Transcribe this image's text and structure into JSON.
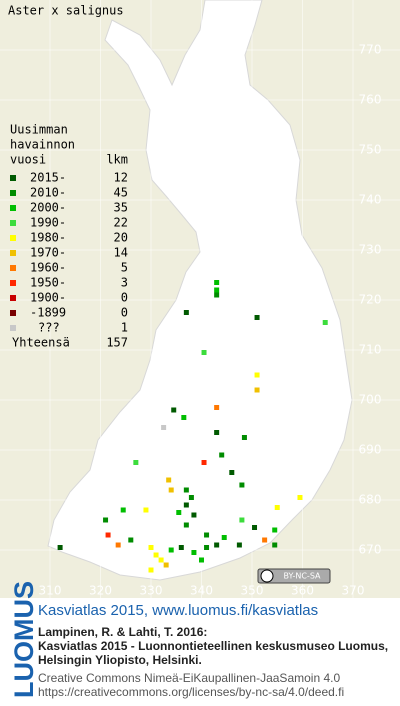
{
  "title": "Aster x salignus",
  "legend": {
    "heading": [
      "Uusimman",
      "havainnon"
    ],
    "col_period": "vuosi",
    "col_count": "lkm",
    "rows": [
      {
        "label": "2015-",
        "count": 12,
        "color": "#005a00"
      },
      {
        "label": "2010-",
        "count": 45,
        "color": "#008c00"
      },
      {
        "label": "2000-",
        "count": 35,
        "color": "#00be00"
      },
      {
        "label": "1990-",
        "count": 22,
        "color": "#3cdc3c"
      },
      {
        "label": "1980-",
        "count": 20,
        "color": "#ffff00"
      },
      {
        "label": "1970-",
        "count": 14,
        "color": "#f0c000"
      },
      {
        "label": "1960-",
        "count": 5,
        "color": "#ff7800"
      },
      {
        "label": "1950-",
        "count": 3,
        "color": "#ff2800"
      },
      {
        "label": "1900-",
        "count": 0,
        "color": "#c80000"
      },
      {
        "label": "-1899",
        "count": 0,
        "color": "#780000"
      },
      {
        "label": "???",
        "count": 1,
        "color": "#c8c8c8"
      }
    ],
    "total_label": "Yhteensä",
    "total": 157
  },
  "grid_y": [
    770,
    760,
    750,
    740,
    730,
    720,
    710,
    700,
    690,
    680,
    670
  ],
  "grid_x": [
    310,
    320,
    330,
    340,
    350,
    360,
    370
  ],
  "points": [
    [
      343,
      723.5,
      2
    ],
    [
      343,
      722,
      2
    ],
    [
      343,
      721,
      1
    ],
    [
      337,
      717.5,
      0
    ],
    [
      351,
      716.5,
      0
    ],
    [
      364.5,
      715.5,
      3
    ],
    [
      340.5,
      709.5,
      3
    ],
    [
      351,
      705,
      4
    ],
    [
      351,
      702,
      5
    ],
    [
      334.5,
      698,
      0
    ],
    [
      343,
      698.5,
      6
    ],
    [
      336.5,
      696.5,
      2
    ],
    [
      332.5,
      694.5,
      10
    ],
    [
      343,
      693.5,
      0
    ],
    [
      348.5,
      692.5,
      1
    ],
    [
      340.5,
      687.5,
      7
    ],
    [
      344,
      689,
      1
    ],
    [
      346,
      685.5,
      0
    ],
    [
      348,
      683,
      1
    ],
    [
      327,
      687.5,
      3
    ],
    [
      333.5,
      684,
      5
    ],
    [
      334,
      682,
      5
    ],
    [
      337,
      682,
      1
    ],
    [
      338,
      680.5,
      1
    ],
    [
      337,
      679,
      0
    ],
    [
      335.5,
      677.5,
      2
    ],
    [
      337,
      675,
      1
    ],
    [
      338.5,
      677,
      0
    ],
    [
      348,
      676,
      3
    ],
    [
      359.5,
      680.5,
      4
    ],
    [
      355,
      678.5,
      4
    ],
    [
      350.5,
      674.5,
      0
    ],
    [
      354.5,
      674,
      2
    ],
    [
      341,
      673,
      1
    ],
    [
      329,
      678,
      4
    ],
    [
      324.5,
      678,
      2
    ],
    [
      321,
      676,
      1
    ],
    [
      321.5,
      673,
      7
    ],
    [
      323.5,
      671,
      6
    ],
    [
      326,
      672,
      1
    ],
    [
      330,
      670.5,
      4
    ],
    [
      331,
      669,
      4
    ],
    [
      332,
      668,
      4
    ],
    [
      334,
      670,
      2
    ],
    [
      336,
      670.5,
      0
    ],
    [
      338.5,
      669.5,
      2
    ],
    [
      341,
      670.5,
      1
    ],
    [
      343,
      671,
      0
    ],
    [
      344.5,
      672.5,
      2
    ],
    [
      347.5,
      671,
      0
    ],
    [
      352.5,
      672,
      6
    ],
    [
      354.5,
      671,
      1
    ],
    [
      312,
      670.5,
      0
    ],
    [
      330,
      666,
      4
    ],
    [
      333,
      667,
      5
    ],
    [
      340,
      668,
      2
    ]
  ],
  "cc_badge": "BY-NC-SA",
  "footer": {
    "brand": "LUOMUS",
    "headline": "Kasviatlas 2015, www.luomus.fi/kasviatlas",
    "citation": [
      "Lampinen, R. & Lahti, T. 2016:",
      "Kasviatlas 2015 - Luonnontieteellinen keskusmuseo Luomus,",
      "Helsingin Yliopisto, Helsinki."
    ],
    "license": [
      "Creative Commons Nimeä-EiKaupallinen-JaaSamoin 4.0",
      "https://creativecommons.org/licenses/by-nc-sa/4.0/deed.fi"
    ]
  }
}
